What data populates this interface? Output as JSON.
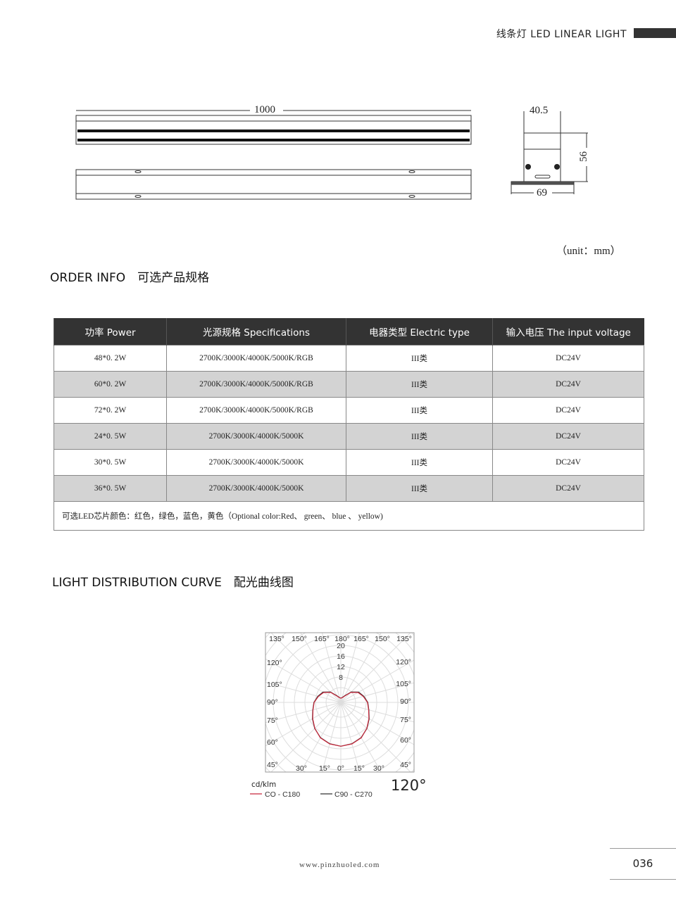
{
  "header": {
    "title": "线条灯 LED LINEAR LIGHT"
  },
  "drawing": {
    "length": "1000",
    "width": "40.5",
    "height": "56",
    "base_width": "69",
    "unit": "（unit：mm）"
  },
  "order_info": {
    "title": "ORDER INFO　可选产品规格",
    "columns": [
      "功率 Power",
      "光源规格 Specifications",
      "电器类型 Electric type",
      "输入电压 The input voltage"
    ],
    "rows": [
      [
        "48*0. 2W",
        "2700K/3000K/4000K/5000K/RGB",
        "III类",
        "DC24V"
      ],
      [
        "60*0. 2W",
        "2700K/3000K/4000K/5000K/RGB",
        "III类",
        "DC24V"
      ],
      [
        "72*0. 2W",
        "2700K/3000K/4000K/5000K/RGB",
        "III类",
        "DC24V"
      ],
      [
        "24*0. 5W",
        "2700K/3000K/4000K/5000K",
        "III类",
        "DC24V"
      ],
      [
        "30*0. 5W",
        "2700K/3000K/4000K/5000K",
        "III类",
        "DC24V"
      ],
      [
        "36*0. 5W",
        "2700K/3000K/4000K/5000K",
        "III类",
        "DC24V"
      ]
    ],
    "note": "可选LED芯片颜色：红色，绿色，蓝色，黄色（Optional color:Red、 green、 blue 、 yellow)"
  },
  "distribution": {
    "title": "LIGHT DISTRIBUTION CURVE　配光曲线图",
    "beam_angle": "120°"
  },
  "chart_data": {
    "type": "polar",
    "unit_label": "cd/klm",
    "angle_labels_left": [
      "135°",
      "120°",
      "105°",
      "90°",
      "75°",
      "60°",
      "45°",
      "30°",
      "15°"
    ],
    "angle_labels_top": [
      "135°",
      "150°",
      "165°",
      "180°",
      "165°",
      "150°",
      "135°"
    ],
    "angle_labels_right": [
      "120°",
      "105°",
      "90°",
      "75°",
      "60°",
      "45°"
    ],
    "angle_labels_bottom": [
      "30°",
      "15°",
      "0°",
      "15°",
      "30°"
    ],
    "radial_labels": [
      "20",
      "16",
      "12",
      "8"
    ],
    "angles": [
      0,
      15,
      30,
      45,
      60,
      75,
      90,
      105,
      120,
      135,
      150,
      165,
      180
    ],
    "series": [
      {
        "name": "CO - C180",
        "color": "#c8283c",
        "values": [
          15,
          14.7,
          13.9,
          12.3,
          10.7,
          9.3,
          8.5,
          7.2,
          5.9,
          3.7,
          1.1,
          0.2,
          0
        ]
      },
      {
        "name": "C90 - C270",
        "color": "#333333",
        "values": [
          15,
          14.6,
          13.8,
          12.4,
          10.8,
          9.4,
          8.6,
          7.4,
          6.2,
          4.0,
          1.3,
          0.3,
          0
        ]
      }
    ]
  },
  "footer": {
    "website": "www.pinzhuoled.com",
    "page_number": "036"
  }
}
